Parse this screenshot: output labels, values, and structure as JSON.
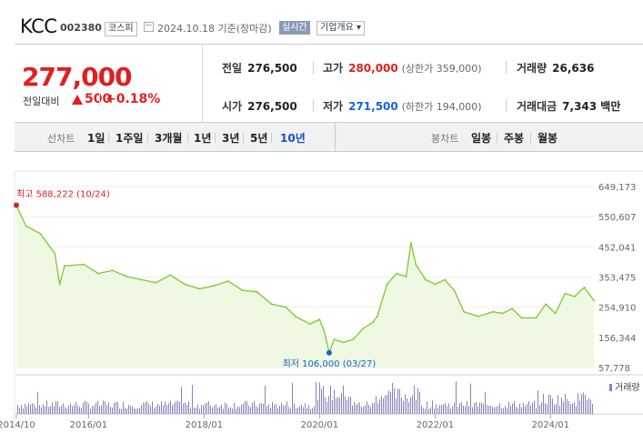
{
  "header": {
    "name": "KCC",
    "code": "002380",
    "market": "코스피",
    "date": "2024.10.18 기준(장마감)",
    "live": "실시간",
    "corp_info": "기업개요 ▾"
  },
  "quote": {
    "price": "277,000",
    "diff_label": "전일대비",
    "diff": "500",
    "rate": "+0.18%",
    "prev_label": "전일",
    "prev": "276,500",
    "high_label": "고가",
    "high": "280,000",
    "upper_limit": "(상한가 359,000)",
    "volume_label": "거래량",
    "volume": "26,636",
    "open_label": "시가",
    "open": "276,500",
    "low_label": "저가",
    "low": "271,500",
    "lower_limit": "(하한가 194,000)",
    "amount_label": "거래대금",
    "amount": "7,343 백만"
  },
  "toolbar": {
    "line_label": "선차트",
    "line_periods": [
      "1일",
      "1주일",
      "3개월",
      "1년",
      "3년",
      "5년",
      "10년"
    ],
    "selected": "10년",
    "candle_label": "봉차트",
    "candle_periods": [
      "일봉",
      "주봉",
      "월봉"
    ]
  },
  "colors": {
    "up": "#e02020",
    "down": "#1a63d0",
    "line": "#7ec832",
    "fill": "#eef8e2",
    "volume": "#8a82b8"
  },
  "chart_data": {
    "type": "area",
    "x_ticks": [
      "2014/10",
      "2016/01",
      "2018/01",
      "2020/01",
      "2022/01",
      "2024/01"
    ],
    "x_range": [
      "2014/10",
      "2024/10"
    ],
    "y_ticks": [
      649173,
      550607,
      452041,
      353475,
      254910,
      156344,
      57778
    ],
    "y_range": [
      57778,
      649173
    ],
    "max_label": "최고 588,222 (10/24)",
    "min_label": "최저 106,000 (03/27)",
    "max": {
      "date": "2014/10",
      "value": 588222
    },
    "min": {
      "date": "2020/03",
      "value": 106000
    },
    "volume_label": "거래량",
    "series": [
      {
        "date": "2014/10",
        "value": 588222
      },
      {
        "date": "2014/12",
        "value": 520000
      },
      {
        "date": "2015/03",
        "value": 495000
      },
      {
        "date": "2015/06",
        "value": 430000
      },
      {
        "date": "2015/07",
        "value": 330000
      },
      {
        "date": "2015/08",
        "value": 390000
      },
      {
        "date": "2015/12",
        "value": 395000
      },
      {
        "date": "2016/03",
        "value": 365000
      },
      {
        "date": "2016/06",
        "value": 375000
      },
      {
        "date": "2016/09",
        "value": 355000
      },
      {
        "date": "2016/12",
        "value": 345000
      },
      {
        "date": "2017/03",
        "value": 335000
      },
      {
        "date": "2017/06",
        "value": 360000
      },
      {
        "date": "2017/09",
        "value": 330000
      },
      {
        "date": "2017/12",
        "value": 315000
      },
      {
        "date": "2018/03",
        "value": 325000
      },
      {
        "date": "2018/06",
        "value": 340000
      },
      {
        "date": "2018/09",
        "value": 310000
      },
      {
        "date": "2018/12",
        "value": 305000
      },
      {
        "date": "2019/03",
        "value": 265000
      },
      {
        "date": "2019/06",
        "value": 255000
      },
      {
        "date": "2019/08",
        "value": 225000
      },
      {
        "date": "2019/11",
        "value": 200000
      },
      {
        "date": "2020/01",
        "value": 215000
      },
      {
        "date": "2020/02",
        "value": 175000
      },
      {
        "date": "2020/03",
        "value": 106000
      },
      {
        "date": "2020/04",
        "value": 150000
      },
      {
        "date": "2020/06",
        "value": 140000
      },
      {
        "date": "2020/08",
        "value": 150000
      },
      {
        "date": "2020/10",
        "value": 185000
      },
      {
        "date": "2020/12",
        "value": 205000
      },
      {
        "date": "2021/01",
        "value": 225000
      },
      {
        "date": "2021/03",
        "value": 330000
      },
      {
        "date": "2021/05",
        "value": 365000
      },
      {
        "date": "2021/07",
        "value": 355000
      },
      {
        "date": "2021/08",
        "value": 465000
      },
      {
        "date": "2021/09",
        "value": 395000
      },
      {
        "date": "2021/11",
        "value": 345000
      },
      {
        "date": "2022/01",
        "value": 330000
      },
      {
        "date": "2022/03",
        "value": 345000
      },
      {
        "date": "2022/05",
        "value": 310000
      },
      {
        "date": "2022/07",
        "value": 240000
      },
      {
        "date": "2022/10",
        "value": 225000
      },
      {
        "date": "2023/01",
        "value": 240000
      },
      {
        "date": "2023/03",
        "value": 235000
      },
      {
        "date": "2023/05",
        "value": 250000
      },
      {
        "date": "2023/07",
        "value": 220000
      },
      {
        "date": "2023/10",
        "value": 220000
      },
      {
        "date": "2023/12",
        "value": 265000
      },
      {
        "date": "2024/02",
        "value": 235000
      },
      {
        "date": "2024/04",
        "value": 300000
      },
      {
        "date": "2024/06",
        "value": 290000
      },
      {
        "date": "2024/08",
        "value": 320000
      },
      {
        "date": "2024/10",
        "value": 277000
      }
    ]
  }
}
